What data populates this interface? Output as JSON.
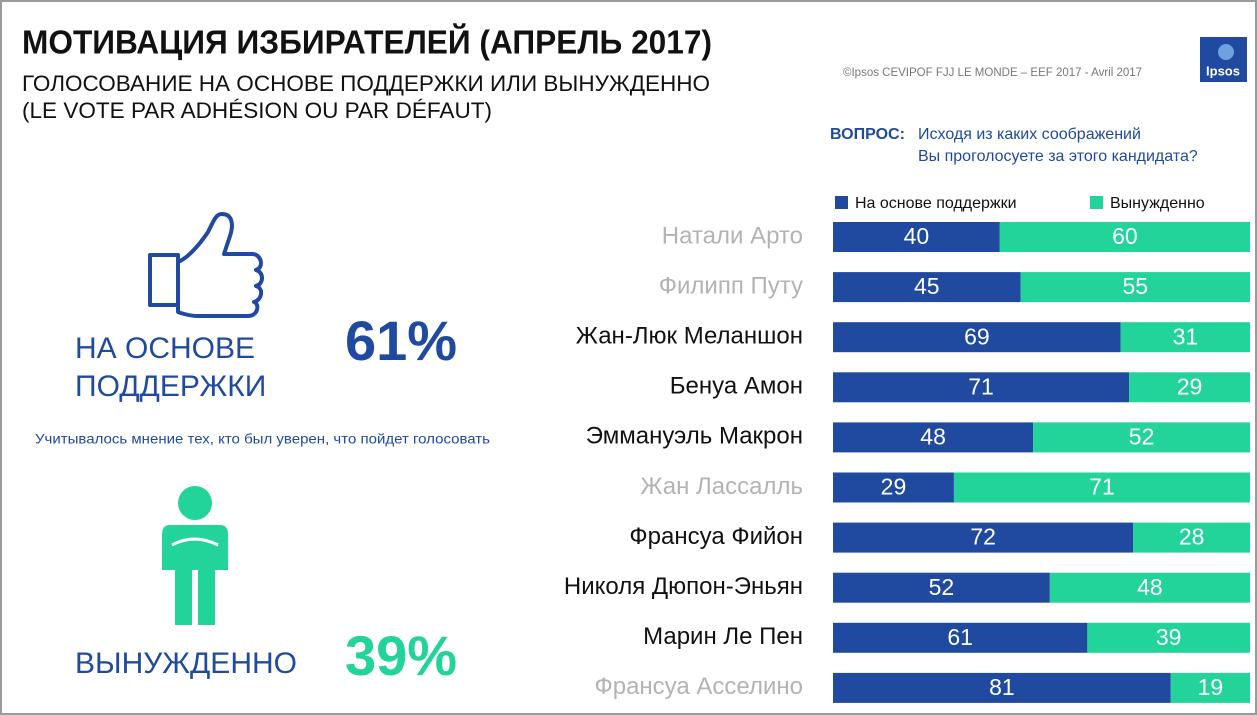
{
  "header": {
    "title": "МОТИВАЦИЯ ИЗБИРАТЕЛЕЙ (АПРЕЛЬ 2017)",
    "subtitle_lines": [
      "ГОЛОСОВАНИЕ НА ОСНОВЕ ПОДДЕРЖКИ ИЛИ ВЫНУЖДЕННО",
      "(LE VOTE PAR ADHÉSION OU PAR DÉFAUT)"
    ],
    "source": "©Ipsos  CEVIPOF FJJ LE MONDE – EEF 2017 - Avril 2017",
    "logo": "Ipsos"
  },
  "question": {
    "label": "ВОПРОС:",
    "lines": [
      "Исходя из каких соображений",
      "Вы проголосуете за этого кандидата?"
    ]
  },
  "summary": {
    "support": {
      "lines": [
        "НА ОСНОВЕ",
        "ПОДДЕРЖКИ"
      ],
      "share": "61%"
    },
    "note": "Учитывалось мнение тех, кто был уверен, что пойдет голосовать",
    "forced": {
      "lines": [
        "ВЫНУЖДЕННО"
      ],
      "share": "39%"
    }
  },
  "chart_data": {
    "type": "stacked_bar_horizontal",
    "categories": [
      "Натали Арто",
      "Филипп Путу",
      "Жан-Люк Меланшон",
      "Бенуа Амон",
      "Эммануэль Макрон",
      "Жан Лассалль",
      "Франсуа Фийон",
      "Николя Дюпон-Эньян",
      "Марин Ле Пен",
      "Франсуа Асселино"
    ],
    "category_colors": [
      "#b3b3b3",
      "#b3b3b3",
      "#111111",
      "#111111",
      "#111111",
      "#b3b3b3",
      "#111111",
      "#111111",
      "#111111",
      "#b3b3b3"
    ],
    "series": [
      {
        "name": "На основе поддержки",
        "color": "#1f4aa0",
        "values": [
          40,
          45,
          69,
          71,
          48,
          29,
          72,
          52,
          61,
          81
        ]
      },
      {
        "name": "Вынужденно",
        "color": "#22d39a",
        "values": [
          60,
          55,
          31,
          29,
          52,
          71,
          28,
          48,
          39,
          19
        ]
      }
    ],
    "legend": "top"
  }
}
